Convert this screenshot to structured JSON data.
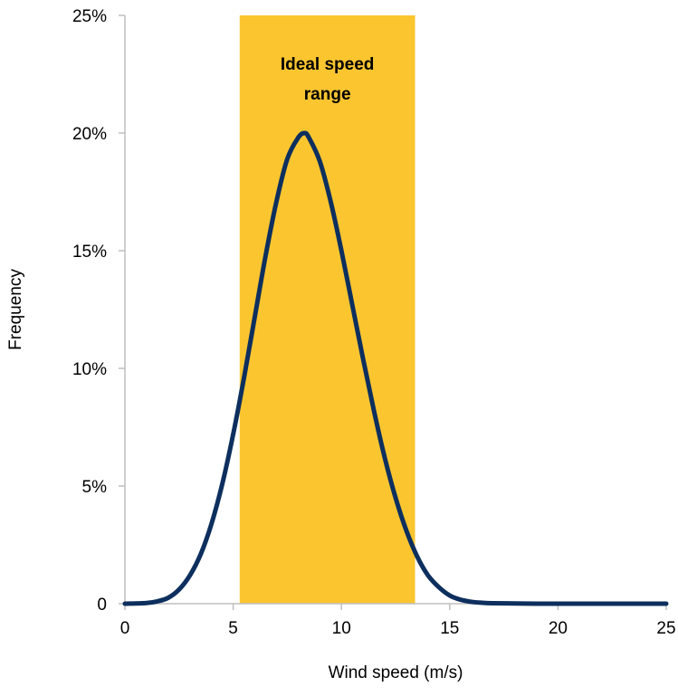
{
  "chart_data": {
    "type": "line",
    "title": "",
    "xlabel": "Wind speed (m/s)",
    "ylabel": "Frequency",
    "xlim": [
      0,
      25
    ],
    "ylim": [
      0,
      25
    ],
    "x_ticks": [
      "0",
      "5",
      "10",
      "15",
      "20",
      "25"
    ],
    "y_ticks": [
      "0",
      "5%",
      "10%",
      "15%",
      "20%",
      "25%"
    ],
    "grid": false,
    "legend": "none",
    "band": {
      "label_lines": [
        "Ideal speed",
        "range"
      ],
      "x_start": 5.3,
      "x_end": 13.4,
      "color": "#FBC530"
    },
    "series": [
      {
        "color": "#0D2F5E",
        "x": [
          0,
          1,
          1.5,
          2,
          2.5,
          3,
          3.5,
          4,
          4.5,
          5,
          5.5,
          6,
          6.5,
          7,
          7.5,
          8,
          8.3,
          8.5,
          9,
          9.5,
          10,
          10.5,
          11,
          11.5,
          12,
          12.5,
          13,
          13.5,
          14,
          14.5,
          15,
          15.5,
          16,
          16.5,
          17,
          18,
          19,
          20,
          21,
          22,
          23,
          24,
          25
        ],
        "y": [
          0,
          0.03,
          0.1,
          0.25,
          0.6,
          1.2,
          2.1,
          3.4,
          5.1,
          7.2,
          9.6,
          12.2,
          14.8,
          17.1,
          18.9,
          19.8,
          20.0,
          19.8,
          18.8,
          17.1,
          15.0,
          12.7,
          10.4,
          8.2,
          6.2,
          4.5,
          3.1,
          2.0,
          1.2,
          0.7,
          0.35,
          0.17,
          0.08,
          0.04,
          0.02,
          0.01,
          0,
          0,
          0,
          0,
          0,
          0,
          0
        ]
      }
    ]
  }
}
